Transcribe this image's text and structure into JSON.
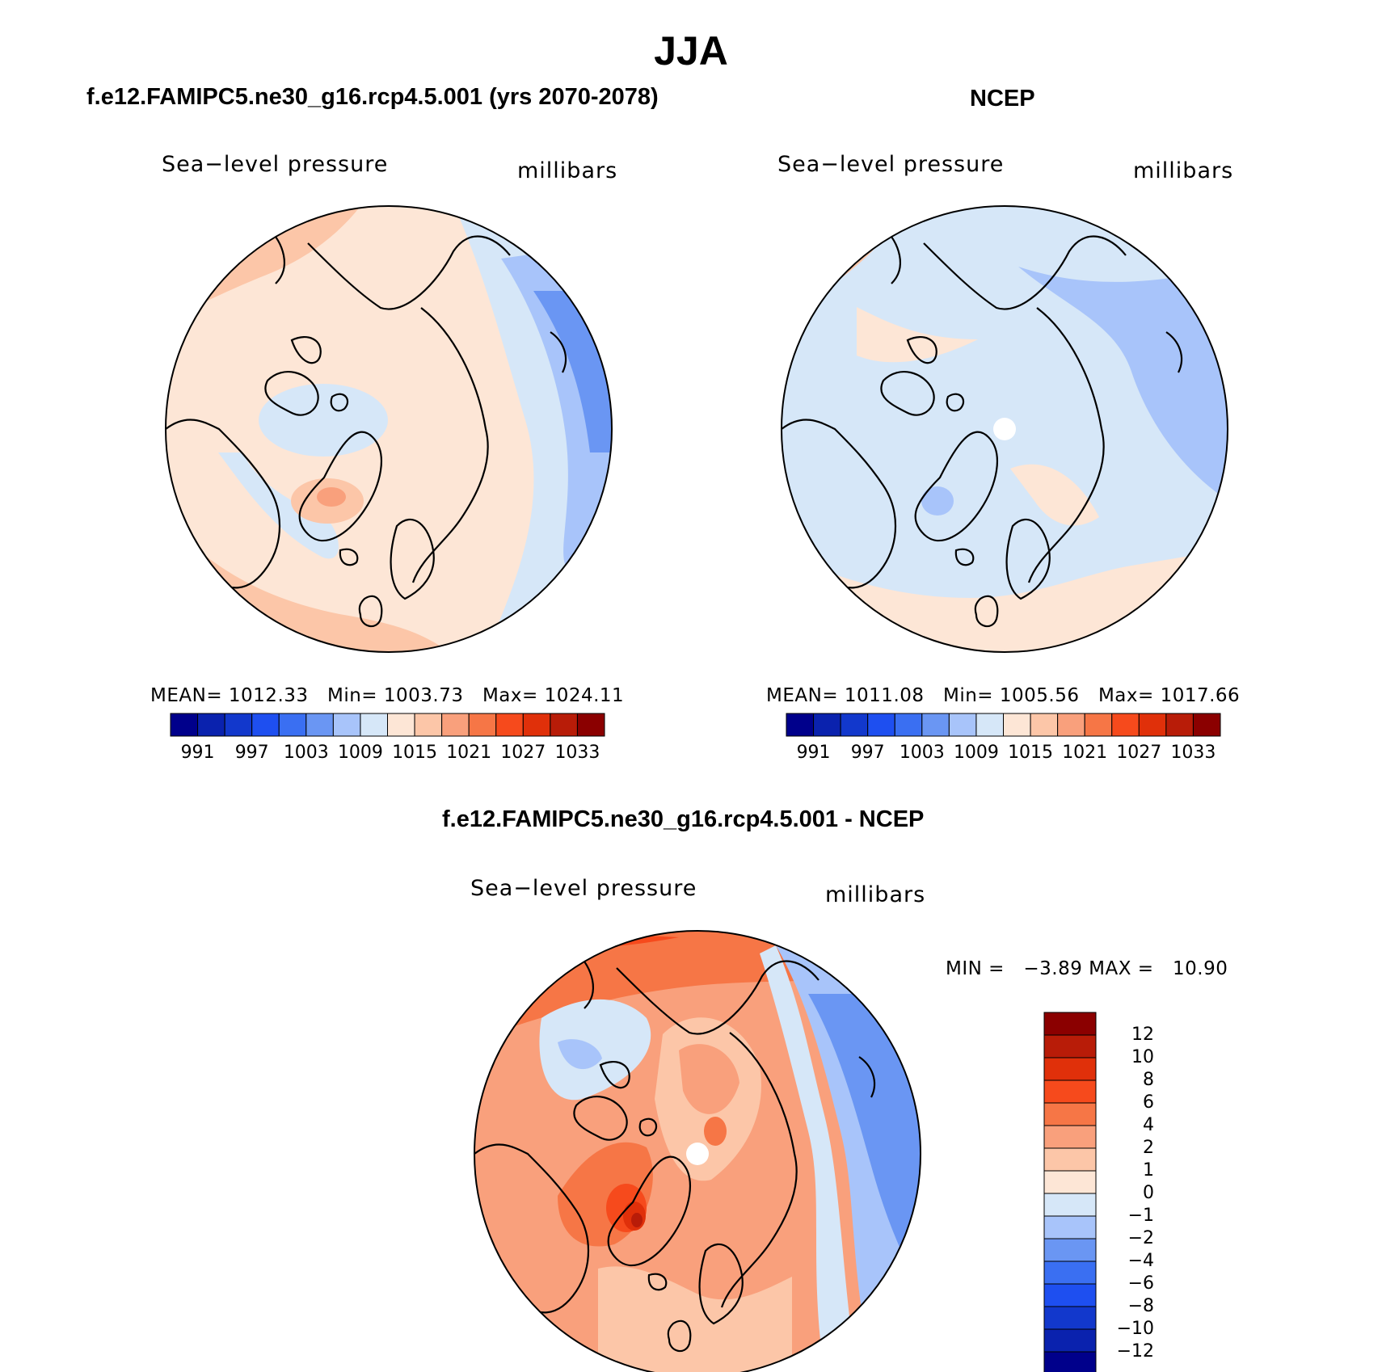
{
  "page_title": "JJA",
  "panels": [
    {
      "title": "f.e12.FAMIPC5.ne30_g16.rcp4.5.001 (yrs 2070-2078)",
      "left_label": "Sea−level pressure",
      "right_label": "millibars",
      "stats": {
        "mean_label": "MEAN=",
        "mean": "1012.33",
        "min_label": "Min=",
        "min": "1003.73",
        "max_label": "Max=",
        "max": "1024.11"
      }
    },
    {
      "title": "NCEP",
      "left_label": "Sea−level pressure",
      "right_label": "millibars",
      "stats": {
        "mean_label": "MEAN=",
        "mean": "1011.08",
        "min_label": "Min=",
        "min": "1005.56",
        "max_label": "Max=",
        "max": "1017.66"
      }
    },
    {
      "title": "f.e12.FAMIPC5.ne30_g16.rcp4.5.001 - NCEP",
      "left_label": "Sea−level pressure",
      "right_label": "millibars",
      "stats": {
        "min_label": "MIN =",
        "min": "−3.89",
        "max_label": "MAX =",
        "max": "10.90"
      }
    }
  ],
  "abs_colorbar": {
    "colors": [
      "#00008b",
      "#0a22ae",
      "#1238cc",
      "#1e4ff0",
      "#3a6ff2",
      "#6a96f3",
      "#a8c4fa",
      "#d6e7f8",
      "#fde6d6",
      "#fcc6a8",
      "#f9a07c",
      "#f67646",
      "#f64a1c",
      "#e0300a",
      "#b81c08",
      "#8b0000"
    ],
    "ticks": [
      "991",
      "997",
      "1003",
      "1009",
      "1015",
      "1021",
      "1027",
      "1033"
    ]
  },
  "diff_colorbar": {
    "colors": [
      "#00008b",
      "#0a22ae",
      "#1238cc",
      "#1e4ff0",
      "#3a6ff2",
      "#6a96f3",
      "#a8c4fa",
      "#d6e7f8",
      "#fde6d6",
      "#fcc6a8",
      "#f9a07c",
      "#f67646",
      "#f64a1c",
      "#e0300a",
      "#b81c08",
      "#8b0000"
    ],
    "ticks": [
      "12",
      "10",
      "8",
      "6",
      "4",
      "2",
      "1",
      "0",
      "−1",
      "−2",
      "−4",
      "−6",
      "−8",
      "−10",
      "−12"
    ]
  },
  "colors": {
    "land_outline": "#000000",
    "missing": "#ffffff"
  }
}
